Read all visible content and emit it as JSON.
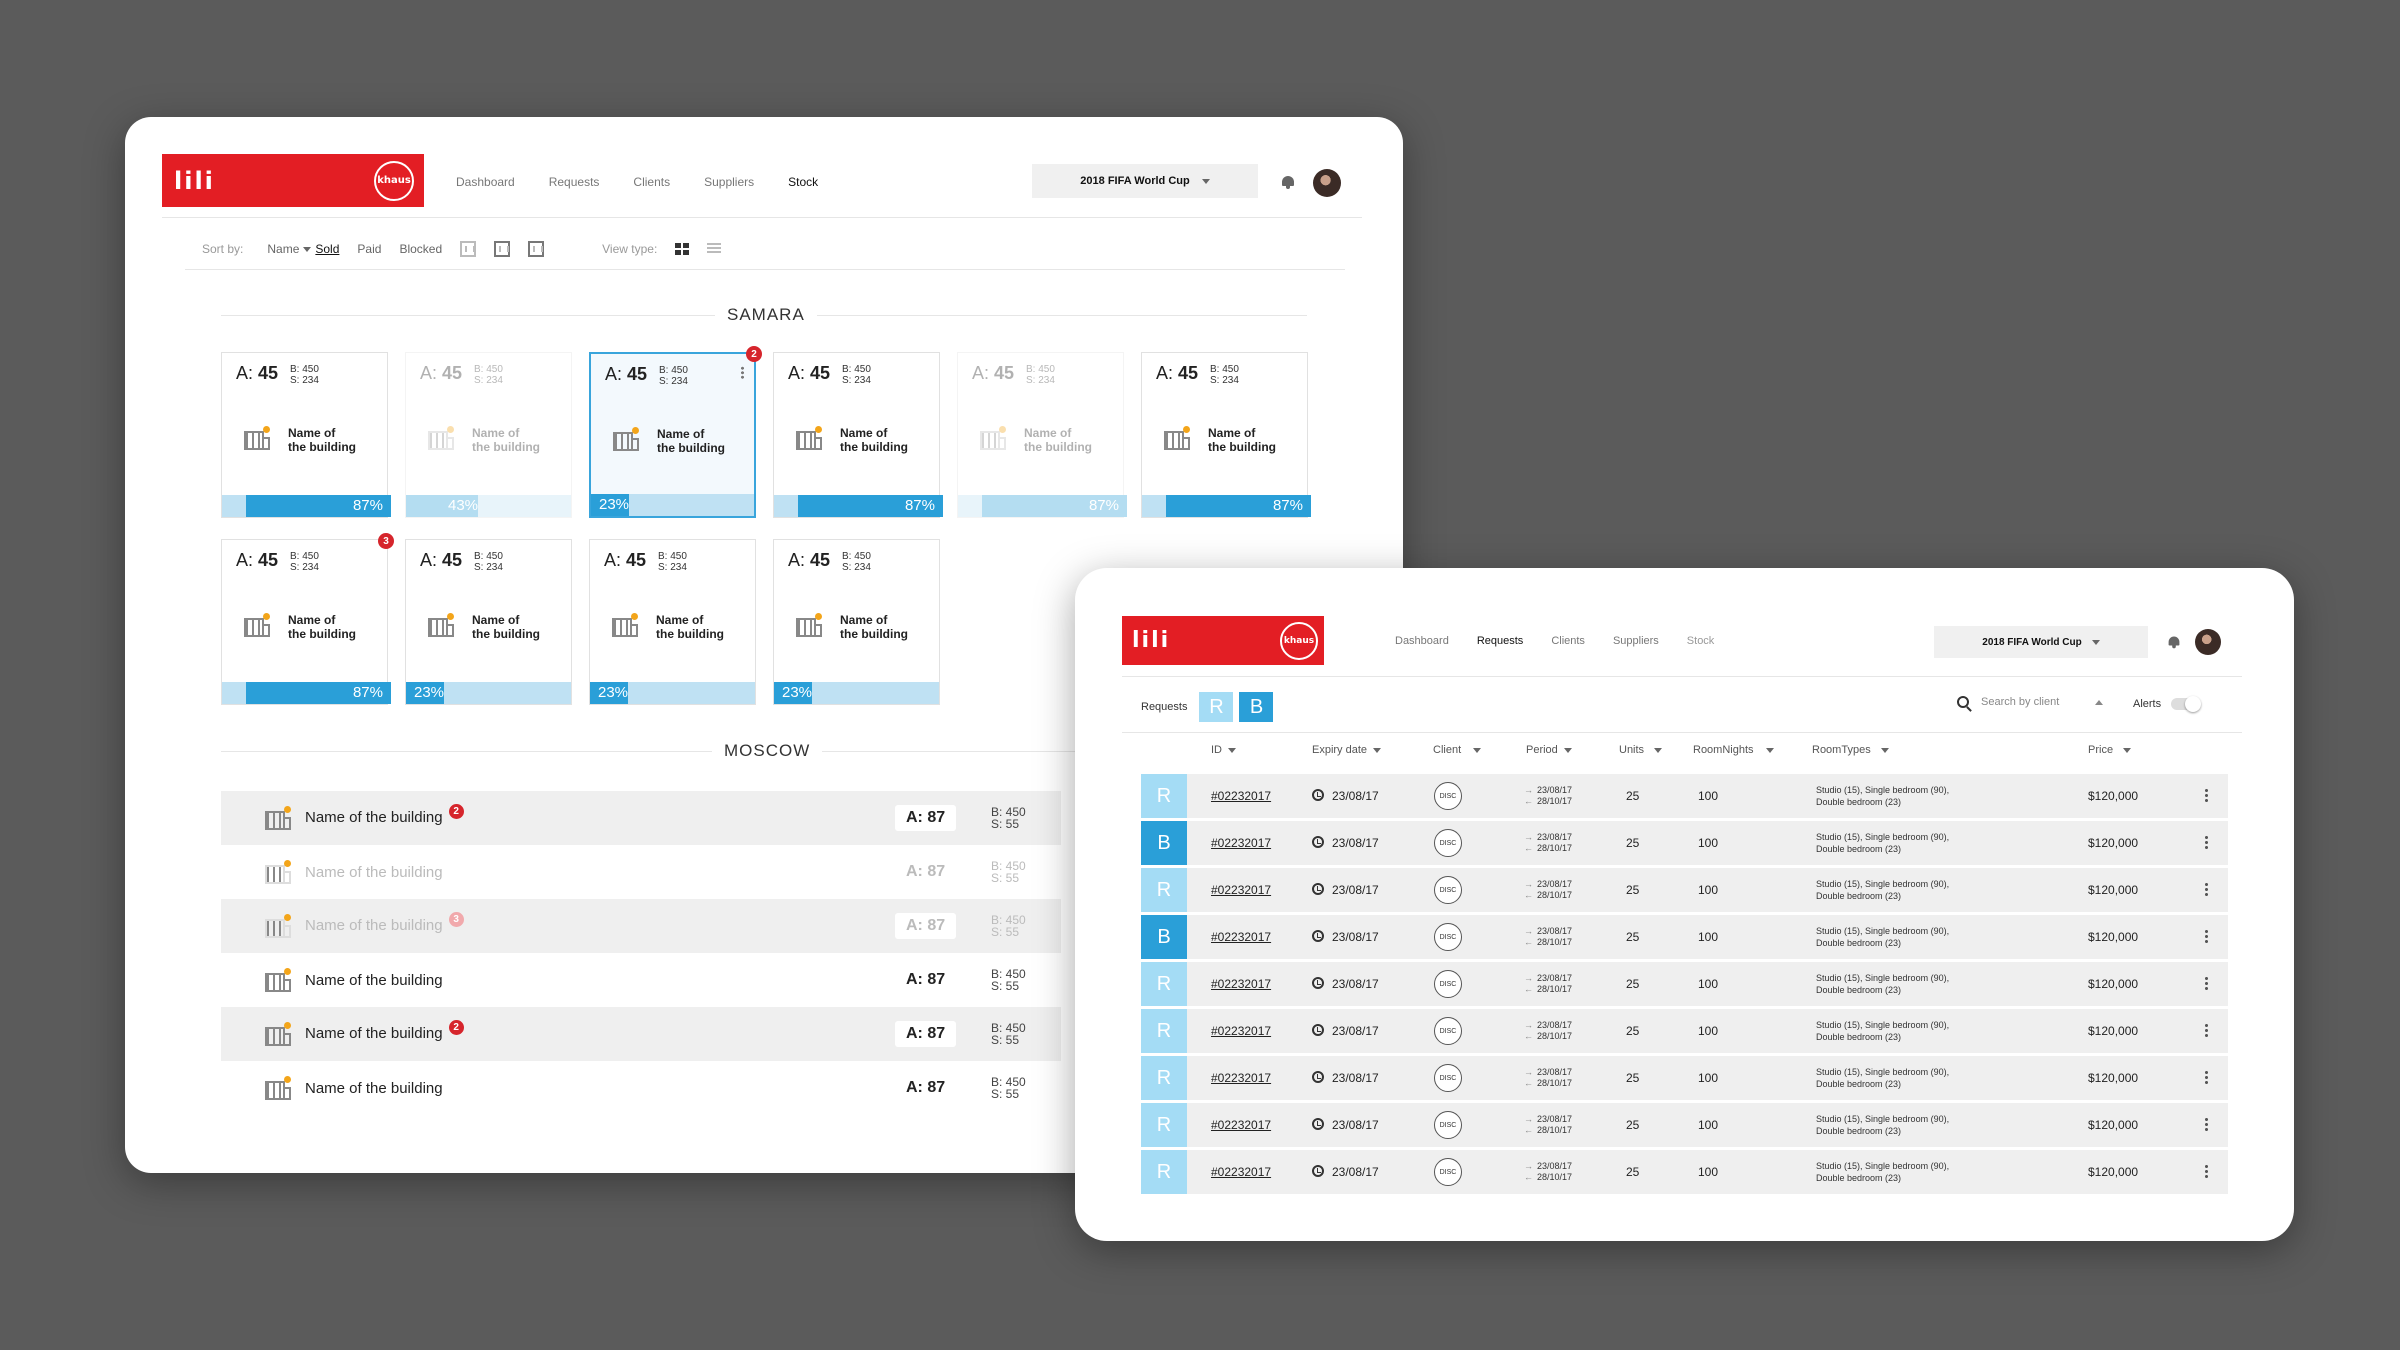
{
  "app": {
    "wordmark": "lili",
    "brand_badge": "khaus",
    "brand_color": "#e31e24",
    "accent": "#2a9fd8",
    "accent_light": "#a4dcf5"
  },
  "nav": [
    {
      "label": "Dashboard"
    },
    {
      "label": "Requests"
    },
    {
      "label": "Clients"
    },
    {
      "label": "Suppliers"
    },
    {
      "label": "Stock"
    }
  ],
  "event_selector": {
    "value": "2018 FIFA World Cup"
  },
  "stock": {
    "sort_label": "Sort by:",
    "sort_options": [
      "Name",
      "Sold",
      "Paid",
      "Blocked"
    ],
    "sort_selected": "Sold",
    "view_type_label": "View type:",
    "cities": [
      {
        "name": "SAMARA",
        "cards": [
          {
            "a_label": "A:",
            "a": "45",
            "b": "B: 450",
            "s": "S: 234",
            "name1": "Name of",
            "name2": "the building",
            "percent": 87,
            "percent_label": "87%",
            "dimmed": false,
            "highlight": false,
            "notifications": null
          },
          {
            "a_label": "A:",
            "a": "45",
            "b": "B: 450",
            "s": "S: 234",
            "name1": "Name of",
            "name2": "the building",
            "percent": 43,
            "percent_label": "43%",
            "dimmed": true,
            "highlight": false,
            "notifications": null
          },
          {
            "a_label": "A:",
            "a": "45",
            "b": "B: 450",
            "s": "S: 234",
            "name1": "Name of",
            "name2": "the building",
            "percent": 23,
            "percent_label": "23%",
            "dimmed": false,
            "highlight": true,
            "notifications": "2"
          },
          {
            "a_label": "A:",
            "a": "45",
            "b": "B: 450",
            "s": "S: 234",
            "name1": "Name of",
            "name2": "the building",
            "percent": 87,
            "percent_label": "87%",
            "dimmed": false,
            "highlight": false,
            "notifications": null
          },
          {
            "a_label": "A:",
            "a": "45",
            "b": "B: 450",
            "s": "S: 234",
            "name1": "Name of",
            "name2": "the building",
            "percent": 87,
            "percent_label": "87%",
            "dimmed": true,
            "highlight": false,
            "notifications": null
          },
          {
            "a_label": "A:",
            "a": "45",
            "b": "B: 450",
            "s": "S: 234",
            "name1": "Name of",
            "name2": "the building",
            "percent": 87,
            "percent_label": "87%",
            "dimmed": false,
            "highlight": false,
            "notifications": null
          },
          {
            "a_label": "A:",
            "a": "45",
            "b": "B: 450",
            "s": "S: 234",
            "name1": "Name of",
            "name2": "the building",
            "percent": 87,
            "percent_label": "87%",
            "dimmed": false,
            "highlight": false,
            "notifications": "3"
          },
          {
            "a_label": "A:",
            "a": "45",
            "b": "B: 450",
            "s": "S: 234",
            "name1": "Name of",
            "name2": "the building",
            "percent": 23,
            "percent_label": "23%",
            "dimmed": false,
            "highlight": false,
            "notifications": null
          },
          {
            "a_label": "A:",
            "a": "45",
            "b": "B: 450",
            "s": "S: 234",
            "name1": "Name of",
            "name2": "the building",
            "percent": 23,
            "percent_label": "23%",
            "dimmed": false,
            "highlight": false,
            "notifications": null
          },
          {
            "a_label": "A:",
            "a": "45",
            "b": "B: 450",
            "s": "S: 234",
            "name1": "Name of",
            "name2": "the building",
            "percent": 23,
            "percent_label": "23%",
            "dimmed": false,
            "highlight": false,
            "notifications": null
          }
        ]
      },
      {
        "name": "MOSCOW",
        "rows": [
          {
            "name": "Name of the building",
            "a": "A: 87",
            "b": "B: 450",
            "s": "S: 55",
            "notifications": "2",
            "dimmed": false,
            "shaded": true
          },
          {
            "name": "Name of the building",
            "a": "A: 87",
            "b": "B: 450",
            "s": "S: 55",
            "notifications": null,
            "dimmed": true,
            "shaded": false
          },
          {
            "name": "Name of the building",
            "a": "A: 87",
            "b": "B: 450",
            "s": "S: 55",
            "notifications": "3",
            "dimmed": true,
            "shaded": true
          },
          {
            "name": "Name of the building",
            "a": "A: 87",
            "b": "B: 450",
            "s": "S: 55",
            "notifications": null,
            "dimmed": false,
            "shaded": false
          },
          {
            "name": "Name of the building",
            "a": "A: 87",
            "b": "B: 450",
            "s": "S: 55",
            "notifications": "2",
            "dimmed": false,
            "shaded": true
          },
          {
            "name": "Name of the building",
            "a": "A: 87",
            "b": "B: 450",
            "s": "S: 55",
            "notifications": null,
            "dimmed": false,
            "shaded": false
          }
        ]
      }
    ]
  },
  "requests": {
    "label": "Requests",
    "tab_r": "R",
    "tab_b": "B",
    "search_placeholder": "Search by client",
    "alerts_label": "Alerts",
    "columns": [
      "ID",
      "Expiry date",
      "Client",
      "Period",
      "Units",
      "RoomNights",
      "RoomTypes",
      "Price"
    ],
    "rows": [
      {
        "status": "R",
        "id": "#02232017",
        "expiry": "23/08/17",
        "client": "DISC",
        "from": "23/08/17",
        "to": "28/10/17",
        "units": "25",
        "nights": "100",
        "rt1": "Studio (15), Single bedroom (90),",
        "rt2": "Double bedroom (23)",
        "price": "$120,000"
      },
      {
        "status": "B",
        "id": "#02232017",
        "expiry": "23/08/17",
        "client": "DISC",
        "from": "23/08/17",
        "to": "28/10/17",
        "units": "25",
        "nights": "100",
        "rt1": "Studio (15), Single bedroom (90),",
        "rt2": "Double bedroom (23)",
        "price": "$120,000"
      },
      {
        "status": "R",
        "id": "#02232017",
        "expiry": "23/08/17",
        "client": "DISC",
        "from": "23/08/17",
        "to": "28/10/17",
        "units": "25",
        "nights": "100",
        "rt1": "Studio (15), Single bedroom (90),",
        "rt2": "Double bedroom (23)",
        "price": "$120,000"
      },
      {
        "status": "B",
        "id": "#02232017",
        "expiry": "23/08/17",
        "client": "DISC",
        "from": "23/08/17",
        "to": "28/10/17",
        "units": "25",
        "nights": "100",
        "rt1": "Studio (15), Single bedroom (90),",
        "rt2": "Double bedroom (23)",
        "price": "$120,000"
      },
      {
        "status": "R",
        "id": "#02232017",
        "expiry": "23/08/17",
        "client": "DISC",
        "from": "23/08/17",
        "to": "28/10/17",
        "units": "25",
        "nights": "100",
        "rt1": "Studio (15), Single bedroom (90),",
        "rt2": "Double bedroom (23)",
        "price": "$120,000"
      },
      {
        "status": "R",
        "id": "#02232017",
        "expiry": "23/08/17",
        "client": "DISC",
        "from": "23/08/17",
        "to": "28/10/17",
        "units": "25",
        "nights": "100",
        "rt1": "Studio (15), Single bedroom (90),",
        "rt2": "Double bedroom (23)",
        "price": "$120,000"
      },
      {
        "status": "R",
        "id": "#02232017",
        "expiry": "23/08/17",
        "client": "DISC",
        "from": "23/08/17",
        "to": "28/10/17",
        "units": "25",
        "nights": "100",
        "rt1": "Studio (15), Single bedroom (90),",
        "rt2": "Double bedroom (23)",
        "price": "$120,000"
      },
      {
        "status": "R",
        "id": "#02232017",
        "expiry": "23/08/17",
        "client": "DISC",
        "from": "23/08/17",
        "to": "28/10/17",
        "units": "25",
        "nights": "100",
        "rt1": "Studio (15), Single bedroom (90),",
        "rt2": "Double bedroom (23)",
        "price": "$120,000"
      },
      {
        "status": "R",
        "id": "#02232017",
        "expiry": "23/08/17",
        "client": "DISC",
        "from": "23/08/17",
        "to": "28/10/17",
        "units": "25",
        "nights": "100",
        "rt1": "Studio (15), Single bedroom (90),",
        "rt2": "Double bedroom (23)",
        "price": "$120,000"
      }
    ]
  }
}
